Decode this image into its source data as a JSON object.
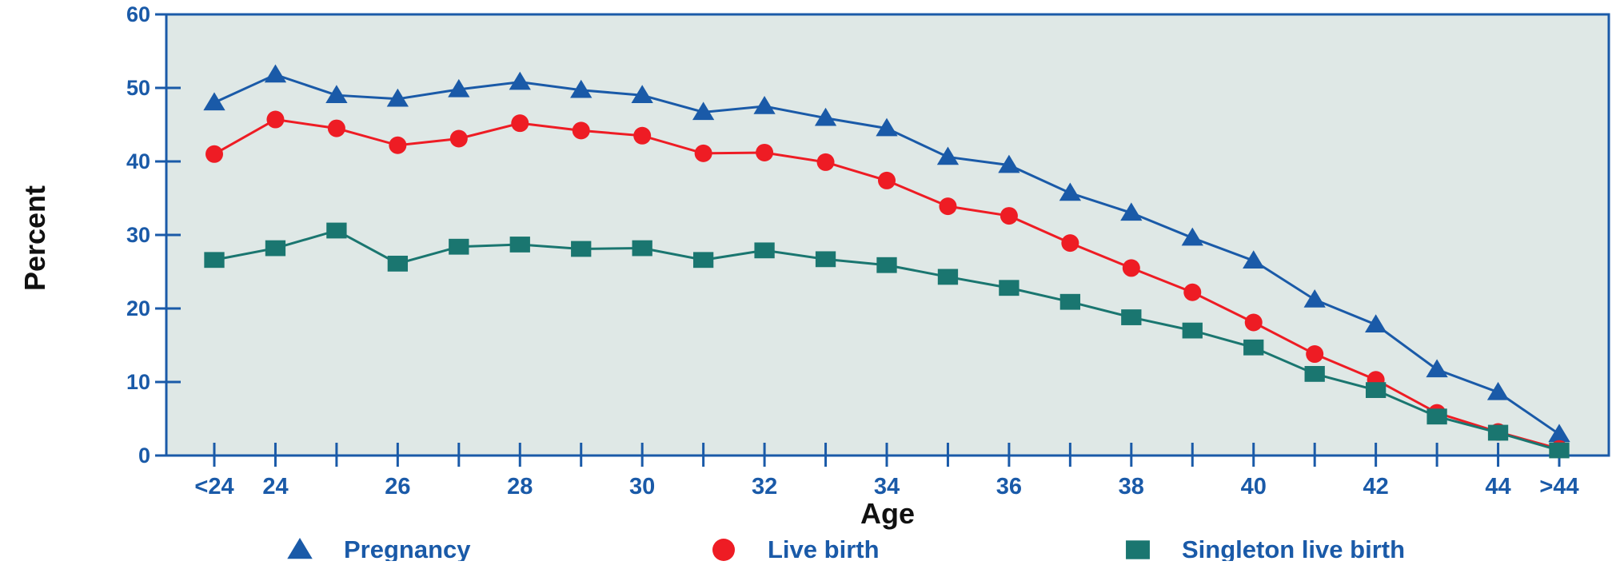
{
  "chart_data": {
    "type": "line",
    "xlabel": "Age",
    "ylabel": "Percent",
    "ylim": [
      0,
      60
    ],
    "y_ticks": [
      0,
      10,
      20,
      30,
      40,
      50,
      60
    ],
    "categories": [
      "<24",
      "24",
      "25",
      "26",
      "27",
      "28",
      "29",
      "30",
      "31",
      "32",
      "33",
      "34",
      "35",
      "36",
      "37",
      "38",
      "39",
      "40",
      "41",
      "42",
      "43",
      "44",
      ">44"
    ],
    "category_labels_shown": [
      "<24",
      "24",
      "",
      "26",
      "",
      "28",
      "",
      "30",
      "",
      "32",
      "",
      "34",
      "",
      "36",
      "",
      "38",
      "",
      "40",
      "",
      "42",
      "",
      "44",
      ">44"
    ],
    "grid": false,
    "legend_position": "bottom",
    "series": [
      {
        "name": "Pregnancy",
        "marker": "triangle",
        "color": "#1a5aa8",
        "values": [
          48.0,
          51.8,
          49.0,
          48.5,
          49.8,
          50.8,
          49.7,
          49.0,
          46.7,
          47.5,
          45.9,
          44.5,
          40.6,
          39.5,
          35.7,
          33.0,
          29.6,
          26.5,
          21.2,
          17.8,
          11.7,
          8.6,
          2.9
        ]
      },
      {
        "name": "Live birth",
        "marker": "circle",
        "color": "#ee1c24",
        "values": [
          41.0,
          45.7,
          44.5,
          42.2,
          43.1,
          45.2,
          44.2,
          43.5,
          41.1,
          41.2,
          39.9,
          37.4,
          33.9,
          32.6,
          28.9,
          25.5,
          22.2,
          18.1,
          13.8,
          10.3,
          5.8,
          3.2,
          0.9
        ]
      },
      {
        "name": "Singleton live birth",
        "marker": "square",
        "color": "#1a7670",
        "values": [
          26.6,
          28.2,
          30.6,
          26.1,
          28.4,
          28.7,
          28.1,
          28.2,
          26.6,
          27.9,
          26.7,
          25.9,
          24.3,
          22.8,
          20.9,
          18.8,
          17.0,
          14.7,
          11.1,
          8.9,
          5.3,
          3.1,
          0.7
        ]
      }
    ]
  },
  "colors": {
    "plot_background": "#dfe8e6",
    "axis": "#1a5aa8",
    "tick_label": "#1a5aa8",
    "axis_title": "#111111"
  }
}
